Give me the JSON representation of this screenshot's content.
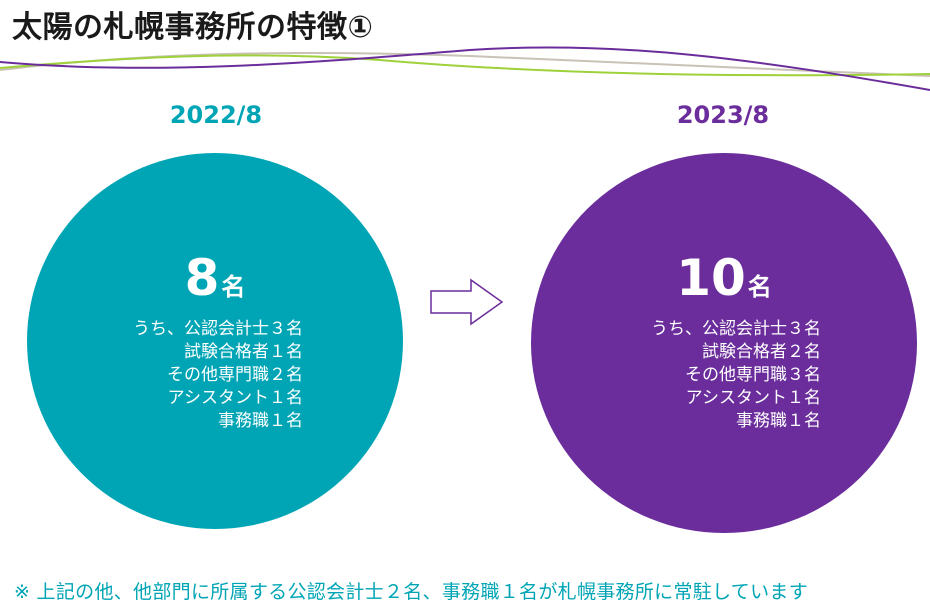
{
  "page": {
    "title": "太陽の札幌事務所の特徴①"
  },
  "colors": {
    "teal": "#00a5b5",
    "purple": "#6a2d9b",
    "arrow_stroke": "#6a2d9b"
  },
  "panels": [
    {
      "year": "2022/8",
      "total_number": "8",
      "total_unit": "名",
      "breakdown": [
        "うち、公認会計士３名",
        "試験合格者１名",
        "その他専門職２名",
        "アシスタント１名",
        "事務職１名"
      ]
    },
    {
      "year": "2023/8",
      "total_number": "10",
      "total_unit": "名",
      "breakdown": [
        "うち、公認会計士３名",
        "試験合格者２名",
        "その他専門職３名",
        "アシスタント１名",
        "事務職１名"
      ]
    }
  ],
  "footnote": "※ 上記の他、他部門に所属する公認会計士２名、事務職１名が札幌事務所に常駐しています",
  "icons": {
    "arrow": "right-arrow-icon"
  }
}
